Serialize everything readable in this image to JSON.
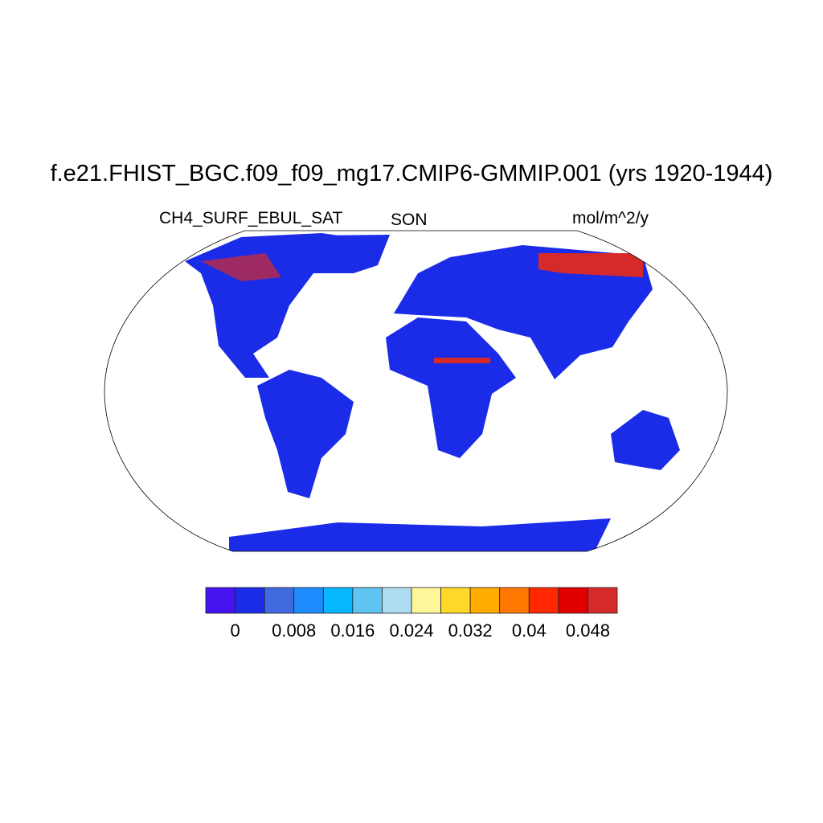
{
  "title": "f.e21.FHIST_BGC.f09_f09_mg17.CMIP6-GMMIP.001 (yrs 1920-1944)",
  "left_string": "CH4_SURF_EBUL_SAT",
  "center_string": "SON",
  "right_string": "mol/m^2/y",
  "map": {
    "projection": "Robinson",
    "land_fill_color": "#1a2ce8",
    "high_value_color": "#d62a2a"
  },
  "colorbar": {
    "colors": [
      "#4413f0",
      "#1a2ce8",
      "#3f6ae0",
      "#1e8cff",
      "#06b6ff",
      "#60c4f2",
      "#b0dcf2",
      "#fff69a",
      "#ffd829",
      "#ffab00",
      "#ff7800",
      "#ff2800",
      "#e00000",
      "#d62a2a"
    ],
    "levels": [
      0,
      0.004,
      0.008,
      0.012,
      0.016,
      0.02,
      0.024,
      0.028,
      0.032,
      0.036,
      0.04,
      0.044,
      0.048
    ],
    "labels": [
      "0",
      "0.008",
      "0.016",
      "0.024",
      "0.032",
      "0.04",
      "0.048"
    ]
  }
}
